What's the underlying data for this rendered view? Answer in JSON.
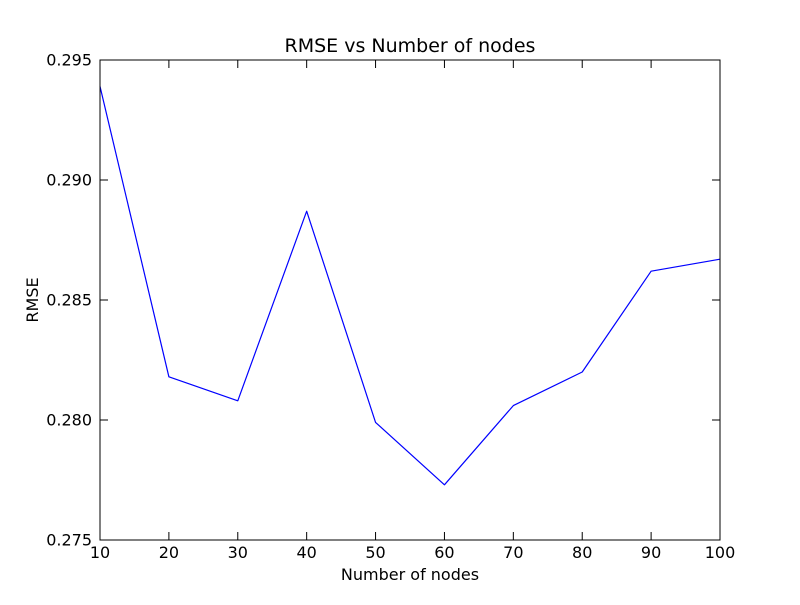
{
  "chart_data": {
    "type": "line",
    "title": "RMSE vs Number of nodes",
    "xlabel": "Number of nodes",
    "ylabel": "RMSE",
    "x": [
      10,
      20,
      30,
      40,
      50,
      60,
      70,
      80,
      90,
      100
    ],
    "series": [
      {
        "values": [
          0.2939,
          0.2818,
          0.2808,
          0.2887,
          0.2799,
          0.2773,
          0.2806,
          0.282,
          0.2862,
          0.2867
        ],
        "color": "#0000ff"
      }
    ],
    "xlim": [
      10,
      100
    ],
    "ylim": [
      0.275,
      0.295
    ],
    "xticks": [
      10,
      20,
      30,
      40,
      50,
      60,
      70,
      80,
      90,
      100
    ],
    "xtick_labels": [
      "10",
      "20",
      "30",
      "40",
      "50",
      "60",
      "70",
      "80",
      "90",
      "100"
    ],
    "yticks": [
      0.275,
      0.28,
      0.285,
      0.29,
      0.295
    ],
    "ytick_labels": [
      "0.275",
      "0.280",
      "0.285",
      "0.290",
      "0.295"
    ],
    "grid": false,
    "legend": false
  }
}
